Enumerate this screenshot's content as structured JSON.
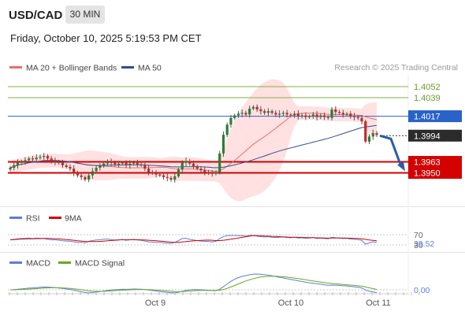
{
  "header": {
    "symbol": "USD/CAD",
    "timeframe": "30 MIN",
    "datetime": "Friday, October 10, 2025 5:19:53 PM CET",
    "credit": "Research © 2025 Trading Central"
  },
  "chart_data": [
    {
      "type": "candlestick",
      "legend": [
        {
          "name": "MA 20 + Bollinger Bands",
          "color": "#ef6b6b"
        },
        {
          "name": "MA 50",
          "color": "#2d4f91"
        }
      ],
      "ylim": [
        1.3934,
        1.4068
      ],
      "x_ticks": [
        "Oct 9",
        "Oct 10",
        "Oct 11"
      ],
      "current_price": 1.3994,
      "levels": [
        {
          "value": 1.4052,
          "type": "resistance",
          "color": "#7cb342"
        },
        {
          "value": 1.4039,
          "type": "resistance",
          "color": "#7cb342"
        },
        {
          "value": 1.4017,
          "type": "pivot",
          "color": "#2962c8"
        },
        {
          "value": 1.3963,
          "type": "support",
          "color": "#d50000"
        },
        {
          "value": 1.395,
          "type": "support",
          "color": "#d50000"
        }
      ],
      "forecast": {
        "from": 1.3994,
        "to": 1.3952,
        "color": "#2a5da8"
      },
      "closes": [
        1.3956,
        1.3959,
        1.3962,
        1.3963,
        1.3965,
        1.3967,
        1.3966,
        1.3968,
        1.3969,
        1.397,
        1.3967,
        1.3964,
        1.3963,
        1.3962,
        1.3959,
        1.3957,
        1.3955,
        1.395,
        1.3947,
        1.3945,
        1.3942,
        1.3947,
        1.3952,
        1.3956,
        1.3958,
        1.3961,
        1.3963,
        1.3962,
        1.396,
        1.3961,
        1.3962,
        1.3959,
        1.3961,
        1.3962,
        1.396,
        1.3959,
        1.3955,
        1.3951,
        1.395,
        1.3948,
        1.3947,
        1.3945,
        1.3944,
        1.3942,
        1.3946,
        1.3954,
        1.3962,
        1.3964,
        1.3961,
        1.3958,
        1.3955,
        1.3953,
        1.3951,
        1.395,
        1.3949,
        1.3951,
        1.3973,
        1.3995,
        1.4007,
        1.4015,
        1.4018,
        1.402,
        1.4021,
        1.4019,
        1.4026,
        1.4028,
        1.4025,
        1.4023,
        1.4021,
        1.4023,
        1.4021,
        1.4019,
        1.402,
        1.4021,
        1.4019,
        1.4018,
        1.402,
        1.4017,
        1.4018,
        1.4016,
        1.4017,
        1.4019,
        1.4016,
        1.4018,
        1.4016,
        1.4015,
        1.4025,
        1.4022,
        1.4021,
        1.4019,
        1.402,
        1.4017,
        1.4016,
        1.4015,
        1.4011,
        1.3987,
        1.3993,
        1.3997,
        1.3995
      ]
    },
    {
      "type": "line",
      "title": "RSI",
      "series": [
        {
          "name": "RSI",
          "color": "#5b7fd6"
        },
        {
          "name": "9MA",
          "color": "#d50000"
        }
      ],
      "levels": [
        70,
        30
      ],
      "last_value": 39.52,
      "rsi": [
        50,
        52,
        54,
        55,
        56,
        57,
        55,
        57,
        56,
        55,
        52,
        50,
        50,
        48,
        46,
        45,
        44,
        42,
        40,
        40,
        38,
        44,
        47,
        49,
        50,
        52,
        53,
        51,
        49,
        50,
        51,
        48,
        50,
        51,
        49,
        48,
        45,
        42,
        41,
        40,
        40,
        38,
        37,
        36,
        40,
        47,
        55,
        56,
        52,
        49,
        47,
        45,
        44,
        43,
        42,
        44,
        55,
        63,
        66,
        67,
        67,
        66,
        66,
        64,
        67,
        67,
        64,
        62,
        61,
        62,
        60,
        59,
        60,
        61,
        59,
        58,
        60,
        57,
        58,
        56,
        57,
        59,
        55,
        57,
        55,
        54,
        60,
        58,
        57,
        55,
        56,
        53,
        52,
        51,
        48,
        33,
        38,
        42,
        40
      ]
    },
    {
      "type": "line",
      "title": "MACD",
      "series": [
        {
          "name": "MACD",
          "color": "#5b7fd6"
        },
        {
          "name": "MACD Signal",
          "color": "#66aa22"
        }
      ],
      "last_value": -0.0
    }
  ]
}
